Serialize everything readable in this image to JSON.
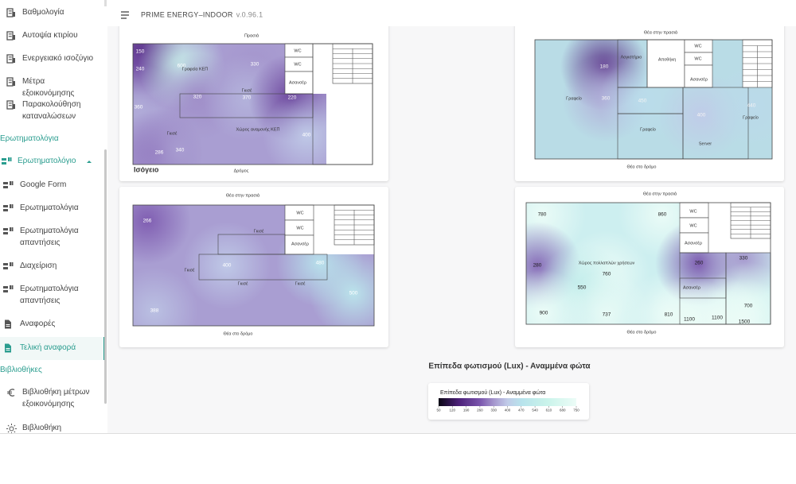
{
  "header": {
    "title": "PRIME ENERGY–INDOOR",
    "version": "v.0.96.1"
  },
  "sidebar": [
    {
      "label": "Βαθμολογία"
    },
    {
      "label": "Αυτοψία κτιρίου"
    },
    {
      "label": "Ενεργειακό ισοζύγιο"
    },
    {
      "label": "Μέτρα εξοικονόμησης"
    },
    {
      "label": "Παρακολούθηση καταναλώσεων"
    },
    {
      "section": "Ερωτηματολόγια"
    },
    {
      "label": "Ερωτηματολόγιο",
      "expanded": true
    },
    {
      "label": "Google Form"
    },
    {
      "label": "Ερωτηματολόγια"
    },
    {
      "label": "Ερωτηματολόγια απαντήσεις"
    },
    {
      "label": "Διαχείριση"
    },
    {
      "label": "Ερωτηματολόγια απαντήσεις"
    },
    {
      "label": "Αναφορές"
    },
    {
      "label": "Τελική αναφορά",
      "selected": true
    },
    {
      "section": "Βιβλιοθήκες"
    },
    {
      "label": "Βιβλιοθήκη μέτρων εξοικονόμησης"
    },
    {
      "label": "Βιβλιοθήκη κλιματικών"
    }
  ],
  "plans": [
    {
      "top": "Πρασιά",
      "bottom": "Δρόμος",
      "floor": "Ισόγειο",
      "rooms": [
        "WC",
        "WC",
        "Ασανσέρ",
        "Γραφεία ΚΕΠ",
        "Γκισέ",
        "Γκισέ",
        "Χώρος αναμονής ΚΕΠ"
      ],
      "values": [
        150,
        240,
        360,
        286,
        600,
        330,
        320,
        370,
        220,
        340,
        400
      ]
    },
    {
      "top": "Θέα στην πρασιά",
      "bottom": "Θέα στο δρόμο",
      "rooms": [
        "WC",
        "WC",
        "Ασανσέρ",
        "Γκισέ",
        "Γκισέ",
        "Γκισέ",
        "Γκισέ"
      ],
      "values": [
        266,
        400,
        480,
        388,
        500
      ]
    },
    {
      "top": "Θέα στην πρασιά",
      "bottom": "Θέα στο δρόμο",
      "rooms": [
        "Λογιστήριο",
        "Αποθήκη",
        "WC",
        "WC",
        "Ασανσέρ",
        "Γραφείο",
        "Γραφείο",
        "Server",
        "Γραφείο"
      ],
      "values": [
        180,
        360,
        450,
        400,
        440
      ]
    },
    {
      "top": "Θέα στην πρασιά",
      "bottom": "Θέα στο δρόμο",
      "rooms": [
        "WC",
        "WC",
        "Ασανσέρ",
        "Χώρος πολλαπλών χρήσεων",
        "Ασανσέρ"
      ],
      "values": [
        780,
        860,
        280,
        760,
        550,
        900,
        737,
        810,
        260,
        330,
        700,
        1100,
        1100,
        1500
      ]
    }
  ],
  "legend": {
    "heading": "Επίπεδα φωτισμού (Lux) - Αναμμένα φώτα",
    "title": "Επίπεδα φωτισμού (Lux) - Αναμμένα φώτα",
    "ticks": [
      50,
      120,
      190,
      260,
      330,
      400,
      470,
      540,
      610,
      680,
      750
    ]
  }
}
